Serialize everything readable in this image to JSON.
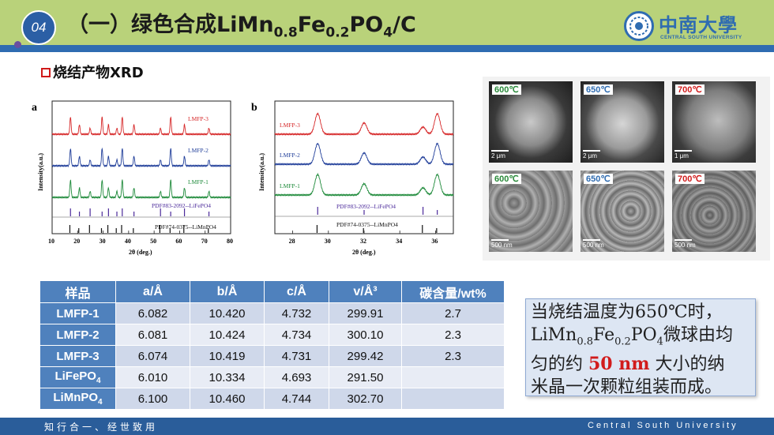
{
  "header": {
    "badge": "04",
    "title_main": "（一）绿色合成LiMn",
    "title_sub1": "0.8",
    "title_mid": "Fe",
    "title_sub2": "0.2",
    "title_mid2": "PO",
    "title_sub3": "4",
    "title_end": "/C",
    "logo_cn": "中南大學",
    "logo_en": "CENTRAL SOUTH UNIVERSITY"
  },
  "section": {
    "heading": "烧结产物XRD"
  },
  "chart_data": [
    {
      "type": "line",
      "panel": "a",
      "xlabel": "2θ (deg.)",
      "ylabel": "Intensity(a.u.)",
      "xlim": [
        10,
        80
      ],
      "xticks": [
        "10",
        "20",
        "30",
        "40",
        "50",
        "60",
        "70",
        "80"
      ],
      "series": [
        {
          "name": "LMFP-3",
          "color": "#d62728"
        },
        {
          "name": "LMFP-2",
          "color": "#1f3d99"
        },
        {
          "name": "LMFP-1",
          "color": "#1e8a3a"
        }
      ],
      "peaks_2theta": [
        17.2,
        20.7,
        24.9,
        29.6,
        32.1,
        35.4,
        37.5,
        42.1,
        52.5,
        56.5,
        61.9,
        71.5
      ],
      "references": [
        "PDF#83-2092--LiFePO4",
        "PDF#74-0375--LiMnPO4"
      ]
    },
    {
      "type": "line",
      "panel": "b",
      "xlabel": "2θ (deg.)",
      "ylabel": "Intensity(a.u.)",
      "xlim": [
        27,
        37
      ],
      "xticks": [
        "28",
        "30",
        "32",
        "34",
        "36"
      ],
      "series": [
        {
          "name": "LMFP-3",
          "color": "#d62728"
        },
        {
          "name": "LMFP-2",
          "color": "#1f3d99"
        },
        {
          "name": "LMFP-1",
          "color": "#1e8a3a"
        }
      ],
      "peaks_2theta": [
        29.4,
        32.0,
        35.3,
        36.1
      ],
      "references": [
        "PDF#83-2092--LiFePO4",
        "PDF#74-0375--LiMnPO4"
      ]
    }
  ],
  "sem": {
    "labels": [
      "600℃",
      "650℃",
      "700℃",
      "600℃",
      "650℃",
      "700℃"
    ],
    "label_colors": [
      "#2a8a3a",
      "#2f6cb1",
      "#d11b1b",
      "#2a8a3a",
      "#2f6cb1",
      "#d11b1b"
    ],
    "scales": [
      "2 μm",
      "2 μm",
      "1 μm",
      "500 nm",
      "500 nm",
      "500 nm"
    ]
  },
  "table": {
    "headers": [
      "样品",
      "a/Å",
      "b/Å",
      "c/Å",
      "v/Å³",
      "碳含量/wt%"
    ],
    "rows": [
      {
        "name": "LMFP-1",
        "a": "6.082",
        "b": "10.420",
        "c": "4.732",
        "v": "299.91",
        "carbon": "2.7"
      },
      {
        "name": "LMFP-2",
        "a": "6.081",
        "b": "10.424",
        "c": "4.734",
        "v": "300.10",
        "carbon": "2.3"
      },
      {
        "name": "LMFP-3",
        "a": "6.074",
        "b": "10.419",
        "c": "4.731",
        "v": "299.42",
        "carbon": "2.3"
      },
      {
        "name": "LiFePO",
        "name_sub": "4",
        "a": "6.010",
        "b": "10.334",
        "c": "4.693",
        "v": "291.50",
        "carbon": ""
      },
      {
        "name": "LiMnPO",
        "name_sub": "4",
        "a": "6.100",
        "b": "10.460",
        "c": "4.744",
        "v": "302.70",
        "carbon": ""
      }
    ]
  },
  "note": {
    "line1": "当烧结温度为650℃时，",
    "l2a": "LiMn",
    "l2s1": "0.8",
    "l2b": "Fe",
    "l2s2": "0.2",
    "l2c": "PO",
    "l2s3": "4",
    "l2d": "微球由均",
    "l3a": "匀的约 ",
    "l3hl": "50 nm",
    "l3b": " 大小的纳",
    "line4": "米晶一次颗粒组装而成。"
  },
  "footer": {
    "left": "知行合一、经世致用",
    "right": "Central South University"
  }
}
